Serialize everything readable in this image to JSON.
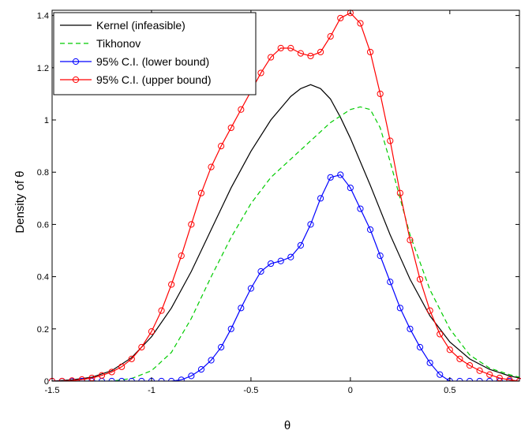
{
  "chart_data": {
    "type": "line",
    "title": "",
    "xlabel": "θ",
    "ylabel": "Density of  θ",
    "xlim": [
      -1.5,
      0.85
    ],
    "ylim": [
      0,
      1.42
    ],
    "xticks": [
      -1.5,
      -1,
      -0.5,
      0,
      0.5
    ],
    "xtick_labels": [
      "-1.5",
      "-1",
      "-0.5",
      "0",
      "0.5"
    ],
    "yticks": [
      0,
      0.2,
      0.4,
      0.6,
      0.8,
      1,
      1.2,
      1.4
    ],
    "ytick_labels": [
      "0",
      "0.2",
      "0.4",
      "0.6",
      "0.8",
      "1",
      "1.2",
      "1.4"
    ],
    "grid": false,
    "legend_position": "top-left",
    "series": [
      {
        "name": "Kernel (infeasible)",
        "color": "#000000",
        "dash": "solid",
        "marker": "none",
        "x": [
          -1.5,
          -1.4,
          -1.3,
          -1.2,
          -1.1,
          -1.0,
          -0.9,
          -0.8,
          -0.7,
          -0.6,
          -0.5,
          -0.4,
          -0.3,
          -0.25,
          -0.2,
          -0.15,
          -0.1,
          -0.05,
          0.0,
          0.1,
          0.2,
          0.3,
          0.4,
          0.5,
          0.6,
          0.7,
          0.8,
          0.85
        ],
        "y": [
          0.0,
          0.005,
          0.015,
          0.04,
          0.09,
          0.17,
          0.28,
          0.42,
          0.58,
          0.74,
          0.88,
          1.0,
          1.09,
          1.12,
          1.135,
          1.12,
          1.08,
          1.01,
          0.93,
          0.75,
          0.56,
          0.39,
          0.25,
          0.15,
          0.085,
          0.045,
          0.02,
          0.012
        ]
      },
      {
        "name": "Tikhonov",
        "color": "#00cc00",
        "dash": "dashed",
        "marker": "none",
        "x": [
          -1.5,
          -1.2,
          -1.1,
          -1.0,
          -0.9,
          -0.8,
          -0.7,
          -0.6,
          -0.5,
          -0.4,
          -0.3,
          -0.2,
          -0.1,
          0.0,
          0.05,
          0.1,
          0.15,
          0.2,
          0.3,
          0.4,
          0.5,
          0.6,
          0.7,
          0.8,
          0.85
        ],
        "y": [
          0.0,
          0.0,
          0.01,
          0.04,
          0.11,
          0.24,
          0.4,
          0.55,
          0.68,
          0.78,
          0.85,
          0.92,
          0.99,
          1.04,
          1.05,
          1.04,
          0.97,
          0.84,
          0.56,
          0.35,
          0.2,
          0.1,
          0.05,
          0.025,
          0.015
        ]
      },
      {
        "name": "95% C.I. (lower bound)",
        "color": "#0000ff",
        "dash": "solid",
        "marker": "circle",
        "x": [
          -1.5,
          -1.45,
          -1.4,
          -1.35,
          -1.3,
          -1.25,
          -1.2,
          -1.15,
          -1.1,
          -1.05,
          -1.0,
          -0.95,
          -0.9,
          -0.85,
          -0.8,
          -0.75,
          -0.7,
          -0.65,
          -0.6,
          -0.55,
          -0.5,
          -0.45,
          -0.4,
          -0.35,
          -0.3,
          -0.25,
          -0.2,
          -0.15,
          -0.1,
          -0.05,
          0.0,
          0.05,
          0.1,
          0.15,
          0.2,
          0.25,
          0.3,
          0.35,
          0.4,
          0.45,
          0.5,
          0.55,
          0.6,
          0.65,
          0.7,
          0.75,
          0.8,
          0.85
        ],
        "y": [
          0.0,
          0.0,
          0.0,
          0.0,
          0.0,
          0.0,
          0.0,
          0.0,
          0.0,
          0.0,
          0.0,
          0.0,
          0.0,
          0.005,
          0.02,
          0.045,
          0.08,
          0.13,
          0.2,
          0.28,
          0.355,
          0.42,
          0.45,
          0.46,
          0.475,
          0.52,
          0.6,
          0.7,
          0.78,
          0.79,
          0.74,
          0.66,
          0.58,
          0.48,
          0.38,
          0.28,
          0.2,
          0.13,
          0.07,
          0.025,
          0.0,
          0.0,
          0.0,
          0.0,
          0.0,
          0.0,
          0.0,
          0.0
        ]
      },
      {
        "name": "95% C.I. (upper bound)",
        "color": "#ff0000",
        "dash": "solid",
        "marker": "circle",
        "x": [
          -1.5,
          -1.45,
          -1.4,
          -1.35,
          -1.3,
          -1.25,
          -1.2,
          -1.15,
          -1.1,
          -1.05,
          -1.0,
          -0.95,
          -0.9,
          -0.85,
          -0.8,
          -0.75,
          -0.7,
          -0.65,
          -0.6,
          -0.55,
          -0.5,
          -0.45,
          -0.4,
          -0.35,
          -0.3,
          -0.25,
          -0.2,
          -0.15,
          -0.1,
          -0.05,
          0.0,
          0.05,
          0.1,
          0.15,
          0.2,
          0.25,
          0.3,
          0.35,
          0.4,
          0.45,
          0.5,
          0.55,
          0.6,
          0.65,
          0.7,
          0.75,
          0.8,
          0.85
        ],
        "y": [
          0.0,
          0.0,
          0.002,
          0.006,
          0.012,
          0.022,
          0.035,
          0.055,
          0.085,
          0.13,
          0.19,
          0.27,
          0.37,
          0.48,
          0.6,
          0.72,
          0.82,
          0.9,
          0.97,
          1.04,
          1.11,
          1.18,
          1.24,
          1.275,
          1.275,
          1.255,
          1.245,
          1.26,
          1.32,
          1.39,
          1.41,
          1.37,
          1.26,
          1.1,
          0.92,
          0.72,
          0.54,
          0.39,
          0.27,
          0.18,
          0.12,
          0.085,
          0.06,
          0.04,
          0.025,
          0.012,
          0.005,
          0.0
        ]
      }
    ]
  }
}
